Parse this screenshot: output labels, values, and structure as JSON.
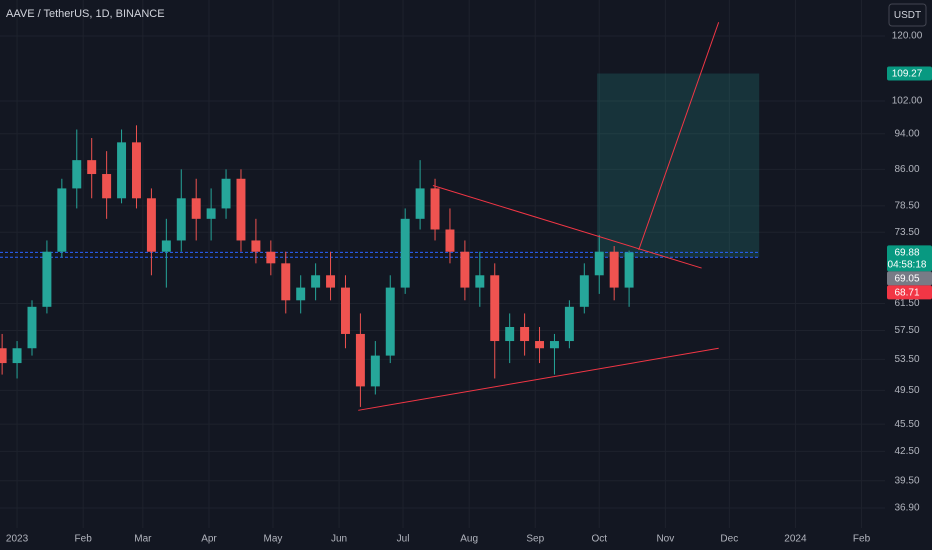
{
  "header": {
    "title": "AAVE / TetherUS, 1D, BINANCE",
    "currency": "USDT"
  },
  "chart_data": {
    "type": "candlestick",
    "x": [
      -7,
      0,
      7,
      14,
      21,
      28,
      35,
      42,
      49,
      56,
      63,
      70,
      77,
      84,
      91,
      98,
      105,
      112,
      119,
      126,
      133,
      140,
      147,
      154,
      161,
      168,
      175,
      182,
      189,
      196,
      203,
      210,
      217,
      224,
      231,
      238,
      245,
      252,
      259,
      266,
      273,
      280,
      287
    ],
    "open": [
      55,
      53,
      55,
      61,
      70,
      82,
      88,
      85,
      80,
      92,
      80,
      70,
      72,
      80,
      76,
      78,
      84,
      72,
      70,
      68,
      62,
      64,
      66,
      64,
      57,
      50,
      54,
      64,
      76,
      82,
      74,
      70,
      64,
      66,
      56,
      58,
      56,
      55,
      56,
      61,
      66,
      70,
      64
    ],
    "high": [
      57,
      56,
      62,
      72,
      84,
      95,
      93,
      90,
      95,
      96,
      82,
      76,
      86,
      84,
      82,
      86,
      86,
      76,
      72,
      70,
      66,
      68,
      70,
      66,
      60,
      56,
      66,
      78,
      88,
      84,
      78,
      72,
      70,
      68,
      60,
      60,
      58,
      57,
      62,
      68,
      73,
      71,
      70.2
    ],
    "low": [
      51.5,
      51,
      54,
      60,
      69,
      78,
      80,
      76,
      79,
      78,
      66,
      64,
      70,
      72,
      72,
      76,
      70,
      68,
      66,
      60,
      60,
      62,
      62,
      55,
      47.5,
      49,
      53,
      63,
      74,
      72,
      68,
      62,
      61,
      51,
      53,
      54,
      53,
      51.5,
      55,
      60,
      63,
      62,
      61
    ],
    "close": [
      53,
      55,
      61,
      70,
      82,
      88,
      85,
      80,
      92,
      80,
      70,
      72,
      80,
      76,
      78,
      84,
      72,
      70,
      68,
      62,
      64,
      66,
      64,
      57,
      50,
      54,
      64,
      76,
      82,
      74,
      70,
      64,
      66,
      56,
      58,
      56,
      55,
      56,
      61,
      66,
      70,
      64,
      69.88
    ],
    "up_color": "#26a69a",
    "down_color": "#ef5350",
    "xlim": [
      -8,
      407
    ],
    "xticks": [
      {
        "value": 0,
        "label": "2023"
      },
      {
        "value": 31,
        "label": "Feb"
      },
      {
        "value": 59,
        "label": "Mar"
      },
      {
        "value": 90,
        "label": "Apr"
      },
      {
        "value": 120,
        "label": "May"
      },
      {
        "value": 151,
        "label": "Jun"
      },
      {
        "value": 181,
        "label": "Jul"
      },
      {
        "value": 212,
        "label": "Aug"
      },
      {
        "value": 243,
        "label": "Sep"
      },
      {
        "value": 273,
        "label": "Oct"
      },
      {
        "value": 304,
        "label": "Nov"
      },
      {
        "value": 334,
        "label": "Dec"
      },
      {
        "value": 365,
        "label": "2024"
      },
      {
        "value": 396,
        "label": "Feb"
      }
    ],
    "ylim": [
      35.1,
      131.3
    ],
    "log_scale": true,
    "grid": true,
    "yticks": [
      {
        "value": 120,
        "label": "120.00"
      },
      {
        "value": 102,
        "label": "102.00"
      },
      {
        "value": 94,
        "label": "94.00"
      },
      {
        "value": 86,
        "label": "86.00"
      },
      {
        "value": 78.5,
        "label": "78.50"
      },
      {
        "value": 73.5,
        "label": "73.50"
      },
      {
        "value": 61.5,
        "label": "61.50"
      },
      {
        "value": 57.5,
        "label": "57.50"
      },
      {
        "value": 53.5,
        "label": "53.50"
      },
      {
        "value": 49.5,
        "label": "49.50"
      },
      {
        "value": 45.5,
        "label": "45.50"
      },
      {
        "value": 42.5,
        "label": "42.50"
      },
      {
        "value": 39.5,
        "label": "39.50"
      },
      {
        "value": 36.9,
        "label": "36.90"
      }
    ],
    "price_labels": [
      {
        "value": 109.27,
        "color": "#089981"
      },
      {
        "value": 69.88,
        "color": "#089981",
        "countdown": "04:58:18"
      },
      {
        "value": 69.05,
        "color": "#787b86"
      },
      {
        "value": 68.71,
        "color": "#f23645"
      }
    ],
    "position": {
      "x": [
        272,
        348
      ],
      "entry": 69.05,
      "target": 109.27,
      "color": "#26a69a"
    },
    "levels": {
      "values": [
        69.88,
        69.05
      ],
      "x": [
        -8,
        348
      ],
      "color": "#2962ff"
    },
    "trendlines": [
      {
        "x": [
          195,
          321
        ],
        "y": [
          82.6,
          67.2
        ],
        "color": "#f23645"
      },
      {
        "x": [
          160,
          329
        ],
        "y": [
          47.1,
          55.0
        ],
        "color": "#f23645"
      },
      {
        "x": [
          291.5,
          329
        ],
        "y": [
          70.3,
          124.2
        ],
        "color": "#f23645"
      }
    ]
  }
}
